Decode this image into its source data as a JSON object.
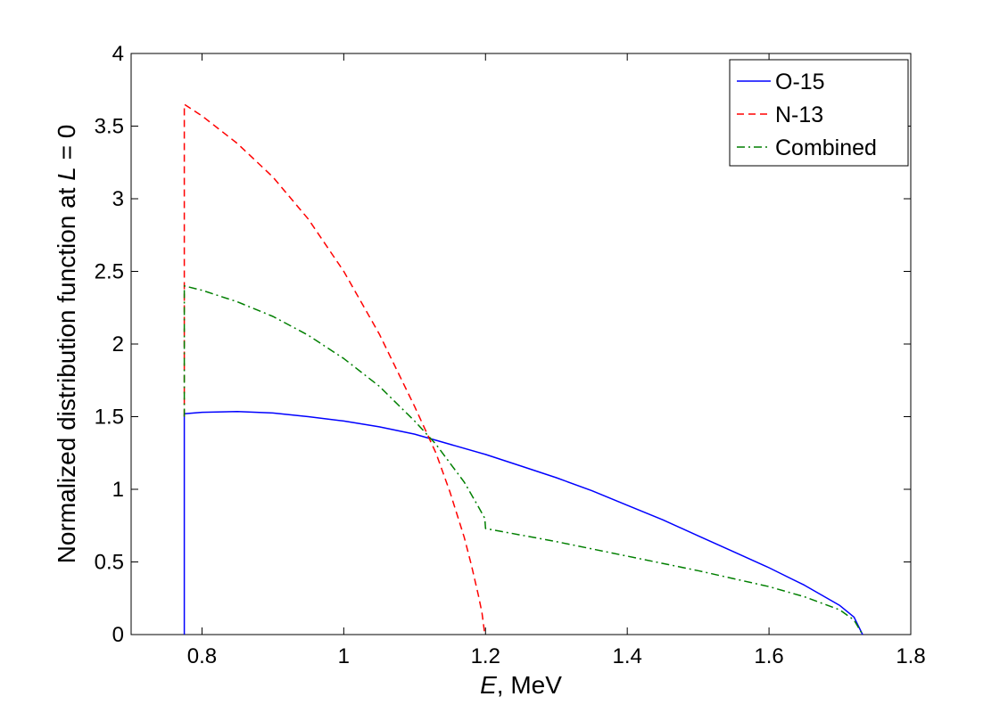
{
  "chart_data": {
    "type": "line",
    "xlabel": "E, MeV",
    "xlabel_parts": {
      "var": "E",
      "rest": ", MeV"
    },
    "ylabel": "Normalized distribution function at L = 0",
    "ylabel_parts": {
      "pre": "Normalized distribution function at ",
      "var": "L",
      "post": " = 0"
    },
    "xlim": [
      0.7,
      1.8
    ],
    "ylim": [
      0,
      4
    ],
    "xticks": [
      0.8,
      1,
      1.2,
      1.4,
      1.6,
      1.8
    ],
    "xtick_labels": [
      "0.8",
      "1",
      "1.2",
      "1.4",
      "1.6",
      "1.8"
    ],
    "yticks": [
      0,
      0.5,
      1,
      1.5,
      2,
      2.5,
      3,
      3.5,
      4
    ],
    "ytick_labels": [
      "0",
      "0.5",
      "1",
      "1.5",
      "2",
      "2.5",
      "3",
      "3.5",
      "4"
    ],
    "grid": false,
    "legend_position": "top-right",
    "series": [
      {
        "name": "O-15",
        "color": "#0000ff",
        "style": "solid",
        "x": [
          0.775,
          0.775,
          0.8,
          0.85,
          0.9,
          0.95,
          1.0,
          1.05,
          1.1,
          1.15,
          1.2,
          1.25,
          1.3,
          1.35,
          1.4,
          1.45,
          1.5,
          1.55,
          1.6,
          1.65,
          1.7,
          1.72,
          1.732
        ],
        "y": [
          0.0,
          1.52,
          1.53,
          1.535,
          1.525,
          1.5,
          1.47,
          1.43,
          1.38,
          1.31,
          1.24,
          1.16,
          1.08,
          0.99,
          0.89,
          0.79,
          0.68,
          0.57,
          0.46,
          0.34,
          0.2,
          0.12,
          0.0
        ]
      },
      {
        "name": "N-13",
        "color": "#ff0000",
        "style": "dashed",
        "x": [
          0.775,
          0.775,
          0.8,
          0.85,
          0.9,
          0.95,
          1.0,
          1.05,
          1.1,
          1.13,
          1.15,
          1.17,
          1.18,
          1.19,
          1.195,
          1.199
        ],
        "y": [
          1.5,
          3.65,
          3.57,
          3.38,
          3.15,
          2.86,
          2.5,
          2.07,
          1.57,
          1.25,
          0.98,
          0.67,
          0.48,
          0.27,
          0.15,
          0.0
        ]
      },
      {
        "name": "Combined",
        "color": "#007f00",
        "style": "dashdot",
        "x": [
          0.775,
          0.775,
          0.8,
          0.85,
          0.9,
          0.95,
          1.0,
          1.05,
          1.1,
          1.13,
          1.15,
          1.17,
          1.19,
          1.199,
          1.2,
          1.3,
          1.4,
          1.5,
          1.6,
          1.65,
          1.7,
          1.72,
          1.732
        ],
        "y": [
          1.5,
          2.4,
          2.37,
          2.29,
          2.19,
          2.06,
          1.9,
          1.71,
          1.47,
          1.31,
          1.18,
          1.05,
          0.88,
          0.8,
          0.73,
          0.64,
          0.54,
          0.44,
          0.33,
          0.26,
          0.17,
          0.1,
          0.0
        ]
      }
    ]
  }
}
